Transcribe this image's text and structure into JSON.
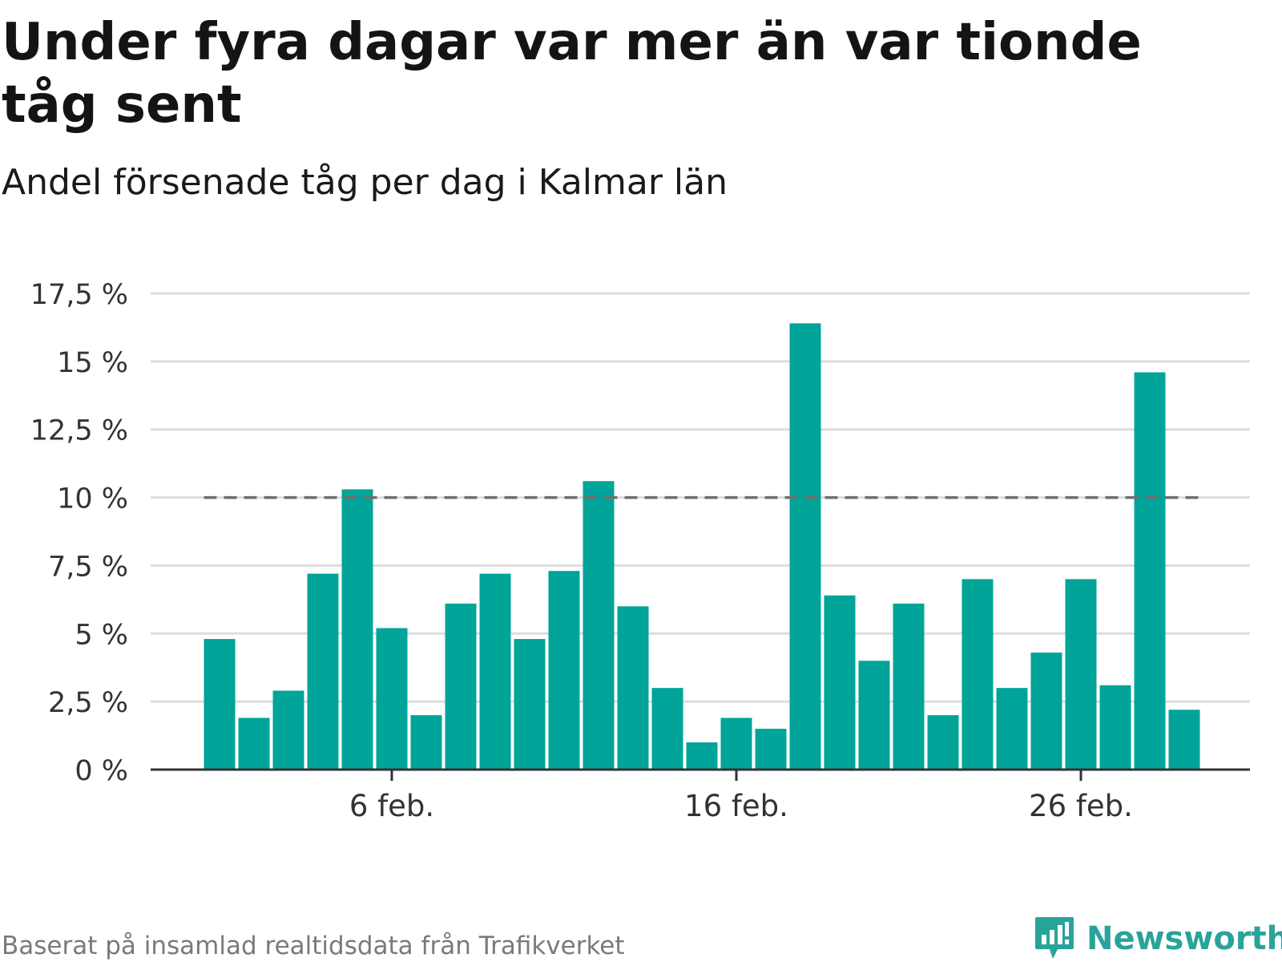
{
  "header": {
    "title": "Under fyra dagar var mer än var tionde tåg sent",
    "subtitle": "Andel försenade tåg per dag i Kalmar län"
  },
  "footer": {
    "source": "Baserat på insamlad realtidsdata från Trafikverket",
    "brand": "Newsworthy"
  },
  "colors": {
    "bar": "#00a499",
    "reference_line": "#6e6e6e",
    "grid": "#dddddd",
    "axis": "#333333",
    "brand": "#2aa39a"
  },
  "chart_data": {
    "type": "bar",
    "x_start_day": 1,
    "x": [
      "1 feb.",
      "2 feb.",
      "3 feb.",
      "4 feb.",
      "5 feb.",
      "6 feb.",
      "7 feb.",
      "8 feb.",
      "9 feb.",
      "10 feb.",
      "11 feb.",
      "12 feb.",
      "13 feb.",
      "14 feb.",
      "15 feb.",
      "16 feb.",
      "17 feb.",
      "18 feb.",
      "19 feb.",
      "20 feb.",
      "21 feb.",
      "22 feb.",
      "23 feb.",
      "24 feb.",
      "25 feb.",
      "26 feb.",
      "27 feb.",
      "28 feb.",
      "29 feb."
    ],
    "values": [
      4.8,
      1.9,
      2.9,
      7.2,
      10.3,
      5.2,
      2.0,
      6.1,
      7.2,
      4.8,
      7.3,
      10.6,
      6.0,
      3.0,
      1.0,
      1.9,
      1.5,
      16.4,
      6.4,
      4.0,
      6.1,
      2.0,
      7.0,
      3.0,
      4.3,
      7.0,
      3.1,
      14.6,
      2.2
    ],
    "ylim": [
      0,
      17.5
    ],
    "yticks": [
      0,
      2.5,
      5,
      7.5,
      10,
      12.5,
      15,
      17.5
    ],
    "ytick_labels": [
      "0 %",
      "2,5 %",
      "5 %",
      "7,5 %",
      "10 %",
      "12,5 %",
      "15 %",
      "17,5 %"
    ],
    "xtick_labels": [
      {
        "label": "6 feb.",
        "day": 6
      },
      {
        "label": "16 feb.",
        "day": 16
      },
      {
        "label": "26 feb.",
        "day": 26
      }
    ],
    "reference_line": {
      "y": 10,
      "style": "dashed"
    },
    "grid": true,
    "legend": "none"
  }
}
